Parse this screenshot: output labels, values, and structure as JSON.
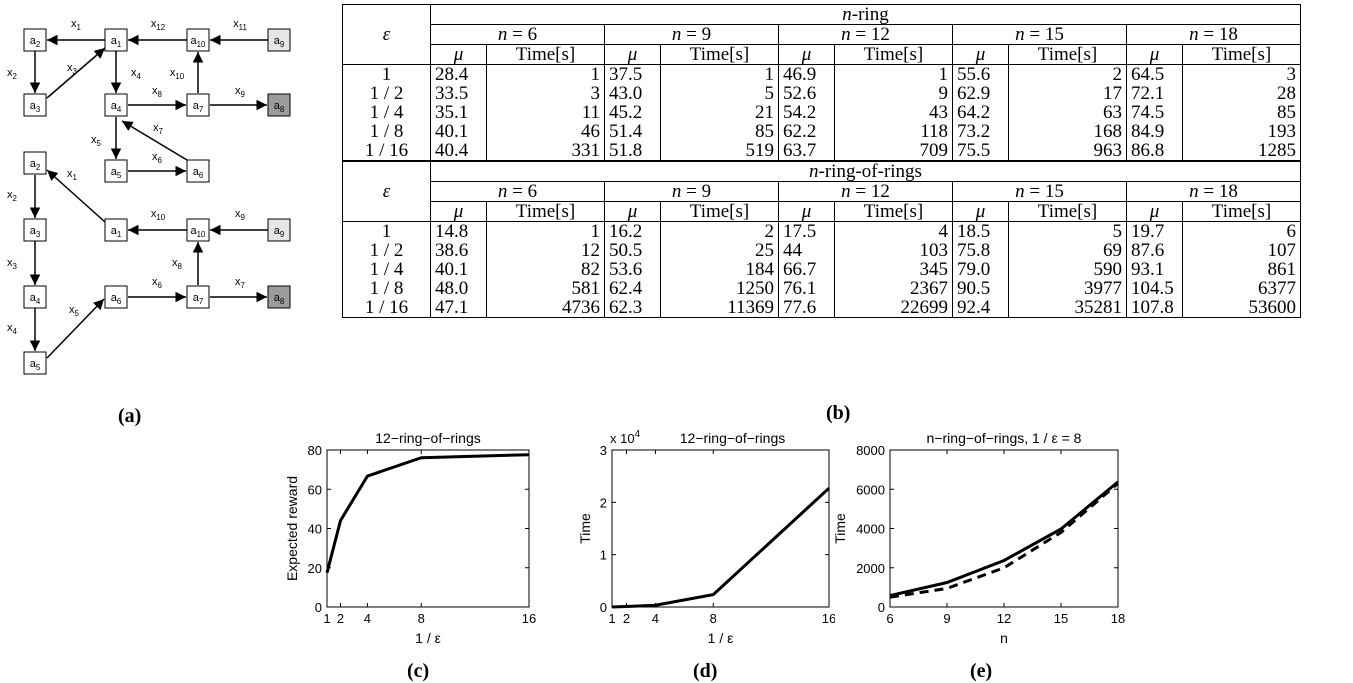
{
  "panel_labels": {
    "a": "(a)",
    "b": "(b)",
    "c": "(c)",
    "d": "(d)",
    "e": "(e)"
  },
  "graph_top": {
    "nodes": [
      {
        "id": "a2",
        "label": "a2",
        "fill": "#ffffff"
      },
      {
        "id": "a1",
        "label": "a1",
        "fill": "#ffffff"
      },
      {
        "id": "a10",
        "label": "a10",
        "fill": "#ffffff"
      },
      {
        "id": "a9",
        "label": "a9",
        "fill": "#e6e6e6"
      },
      {
        "id": "a3",
        "label": "a3",
        "fill": "#ffffff"
      },
      {
        "id": "a4",
        "label": "a4",
        "fill": "#ffffff"
      },
      {
        "id": "a7",
        "label": "a7",
        "fill": "#ffffff"
      },
      {
        "id": "a8",
        "label": "a8",
        "fill": "#9c9c9c"
      },
      {
        "id": "a5",
        "label": "a5",
        "fill": "#ffffff"
      },
      {
        "id": "a6",
        "label": "a6",
        "fill": "#ffffff"
      }
    ],
    "edges": [
      "x1",
      "x2",
      "x3",
      "x4",
      "x5",
      "x6",
      "x7",
      "x8",
      "x9",
      "x10",
      "x11",
      "x12"
    ]
  },
  "graph_bottom": {
    "nodes": [
      {
        "id": "a2",
        "label": "a2",
        "fill": "#ffffff"
      },
      {
        "id": "a1",
        "label": "a1",
        "fill": "#ffffff"
      },
      {
        "id": "a10",
        "label": "a10",
        "fill": "#ffffff"
      },
      {
        "id": "a9",
        "label": "a9",
        "fill": "#e6e6e6"
      },
      {
        "id": "a3",
        "label": "a3",
        "fill": "#ffffff"
      },
      {
        "id": "a4",
        "label": "a4",
        "fill": "#ffffff"
      },
      {
        "id": "a6",
        "label": "a6",
        "fill": "#ffffff"
      },
      {
        "id": "a7",
        "label": "a7",
        "fill": "#ffffff"
      },
      {
        "id": "a8",
        "label": "a8",
        "fill": "#9c9c9c"
      },
      {
        "id": "a5",
        "label": "a5",
        "fill": "#ffffff"
      }
    ],
    "edges": [
      "x1",
      "x2",
      "x3",
      "x4",
      "x5",
      "x6",
      "x7",
      "x8",
      "x9",
      "x10"
    ]
  },
  "tables": [
    {
      "title": "n-ring",
      "eps_header": "ε",
      "groups": [
        "n = 6",
        "n = 9",
        "n = 12",
        "n = 15",
        "n = 18"
      ],
      "mu_header": "μ",
      "time_header": "Time[s]",
      "rows": [
        {
          "eps": "1",
          "vals": [
            "28.4",
            "1",
            "37.5",
            "1",
            "46.9",
            "1",
            "55.6",
            "2",
            "64.5",
            "3"
          ]
        },
        {
          "eps": "1 / 2",
          "vals": [
            "33.5",
            "3",
            "43.0",
            "5",
            "52.6",
            "9",
            "62.9",
            "17",
            "72.1",
            "28"
          ]
        },
        {
          "eps": "1 / 4",
          "vals": [
            "35.1",
            "11",
            "45.2",
            "21",
            "54.2",
            "43",
            "64.2",
            "63",
            "74.5",
            "85"
          ]
        },
        {
          "eps": "1 / 8",
          "vals": [
            "40.1",
            "46",
            "51.4",
            "85",
            "62.2",
            "118",
            "73.2",
            "168",
            "84.9",
            "193"
          ]
        },
        {
          "eps": "1 / 16",
          "vals": [
            "40.4",
            "331",
            "51.8",
            "519",
            "63.7",
            "709",
            "75.5",
            "963",
            "86.8",
            "1285"
          ]
        }
      ]
    },
    {
      "title": "n-ring-of-rings",
      "eps_header": "ε",
      "groups": [
        "n = 6",
        "n = 9",
        "n = 12",
        "n = 15",
        "n = 18"
      ],
      "mu_header": "μ",
      "time_header": "Time[s]",
      "rows": [
        {
          "eps": "1",
          "vals": [
            "14.8",
            "1",
            "16.2",
            "2",
            "17.5",
            "4",
            "18.5",
            "5",
            "19.7",
            "6"
          ]
        },
        {
          "eps": "1 / 2",
          "vals": [
            "38.6",
            "12",
            "50.5",
            "25",
            "44",
            "103",
            "75.8",
            "69",
            "87.6",
            "107"
          ]
        },
        {
          "eps": "1 / 4",
          "vals": [
            "40.1",
            "82",
            "53.6",
            "184",
            "66.7",
            "345",
            "79.0",
            "590",
            "93.1",
            "861"
          ]
        },
        {
          "eps": "1 / 8",
          "vals": [
            "48.0",
            "581",
            "62.4",
            "1250",
            "76.1",
            "2367",
            "90.5",
            "3977",
            "104.5",
            "6377"
          ]
        },
        {
          "eps": "1 / 16",
          "vals": [
            "47.1",
            "4736",
            "62.3",
            "11369",
            "77.6",
            "22699",
            "92.4",
            "35281",
            "107.8",
            "53600"
          ]
        }
      ]
    }
  ],
  "chart_data": [
    {
      "type": "line",
      "title": "12−ring−of−rings",
      "xlabel": "1 / ε",
      "ylabel": "Expected reward",
      "xlim": [
        1,
        16
      ],
      "ylim": [
        0,
        80
      ],
      "xticks": [
        1,
        2,
        4,
        8,
        16
      ],
      "yticks": [
        0,
        20,
        40,
        60,
        80
      ],
      "series": [
        {
          "x": [
            1,
            2,
            4,
            8,
            16
          ],
          "y": [
            17.5,
            44,
            66.7,
            76.1,
            77.6
          ],
          "style": "solid"
        }
      ]
    },
    {
      "type": "line",
      "title": "12−ring−of−rings",
      "exponent": "x 10^4",
      "xlabel": "1 / ε",
      "ylabel": "Time",
      "xlim": [
        1,
        16
      ],
      "ylim": [
        0,
        3
      ],
      "xticks": [
        1,
        2,
        4,
        8,
        16
      ],
      "yticks": [
        0,
        1,
        2,
        3
      ],
      "series": [
        {
          "x": [
            1,
            2,
            4,
            8,
            16
          ],
          "y": [
            0.0004,
            0.0103,
            0.0345,
            0.2367,
            2.2699
          ],
          "style": "solid"
        }
      ]
    },
    {
      "type": "line",
      "title": "n−ring−of−rings, 1 / ε = 8",
      "xlabel": "n",
      "ylabel": "Time",
      "xlim": [
        6,
        18
      ],
      "ylim": [
        0,
        8000
      ],
      "xticks": [
        6,
        9,
        12,
        15,
        18
      ],
      "yticks": [
        0,
        2000,
        4000,
        6000,
        8000
      ],
      "series": [
        {
          "x": [
            6,
            9,
            12,
            15,
            18
          ],
          "y": [
            581,
            1250,
            2367,
            3977,
            6377
          ],
          "style": "solid"
        },
        {
          "x": [
            6,
            9,
            12,
            15,
            18
          ],
          "y": [
            500,
            950,
            2000,
            3800,
            6300
          ],
          "style": "dashed"
        }
      ]
    }
  ]
}
